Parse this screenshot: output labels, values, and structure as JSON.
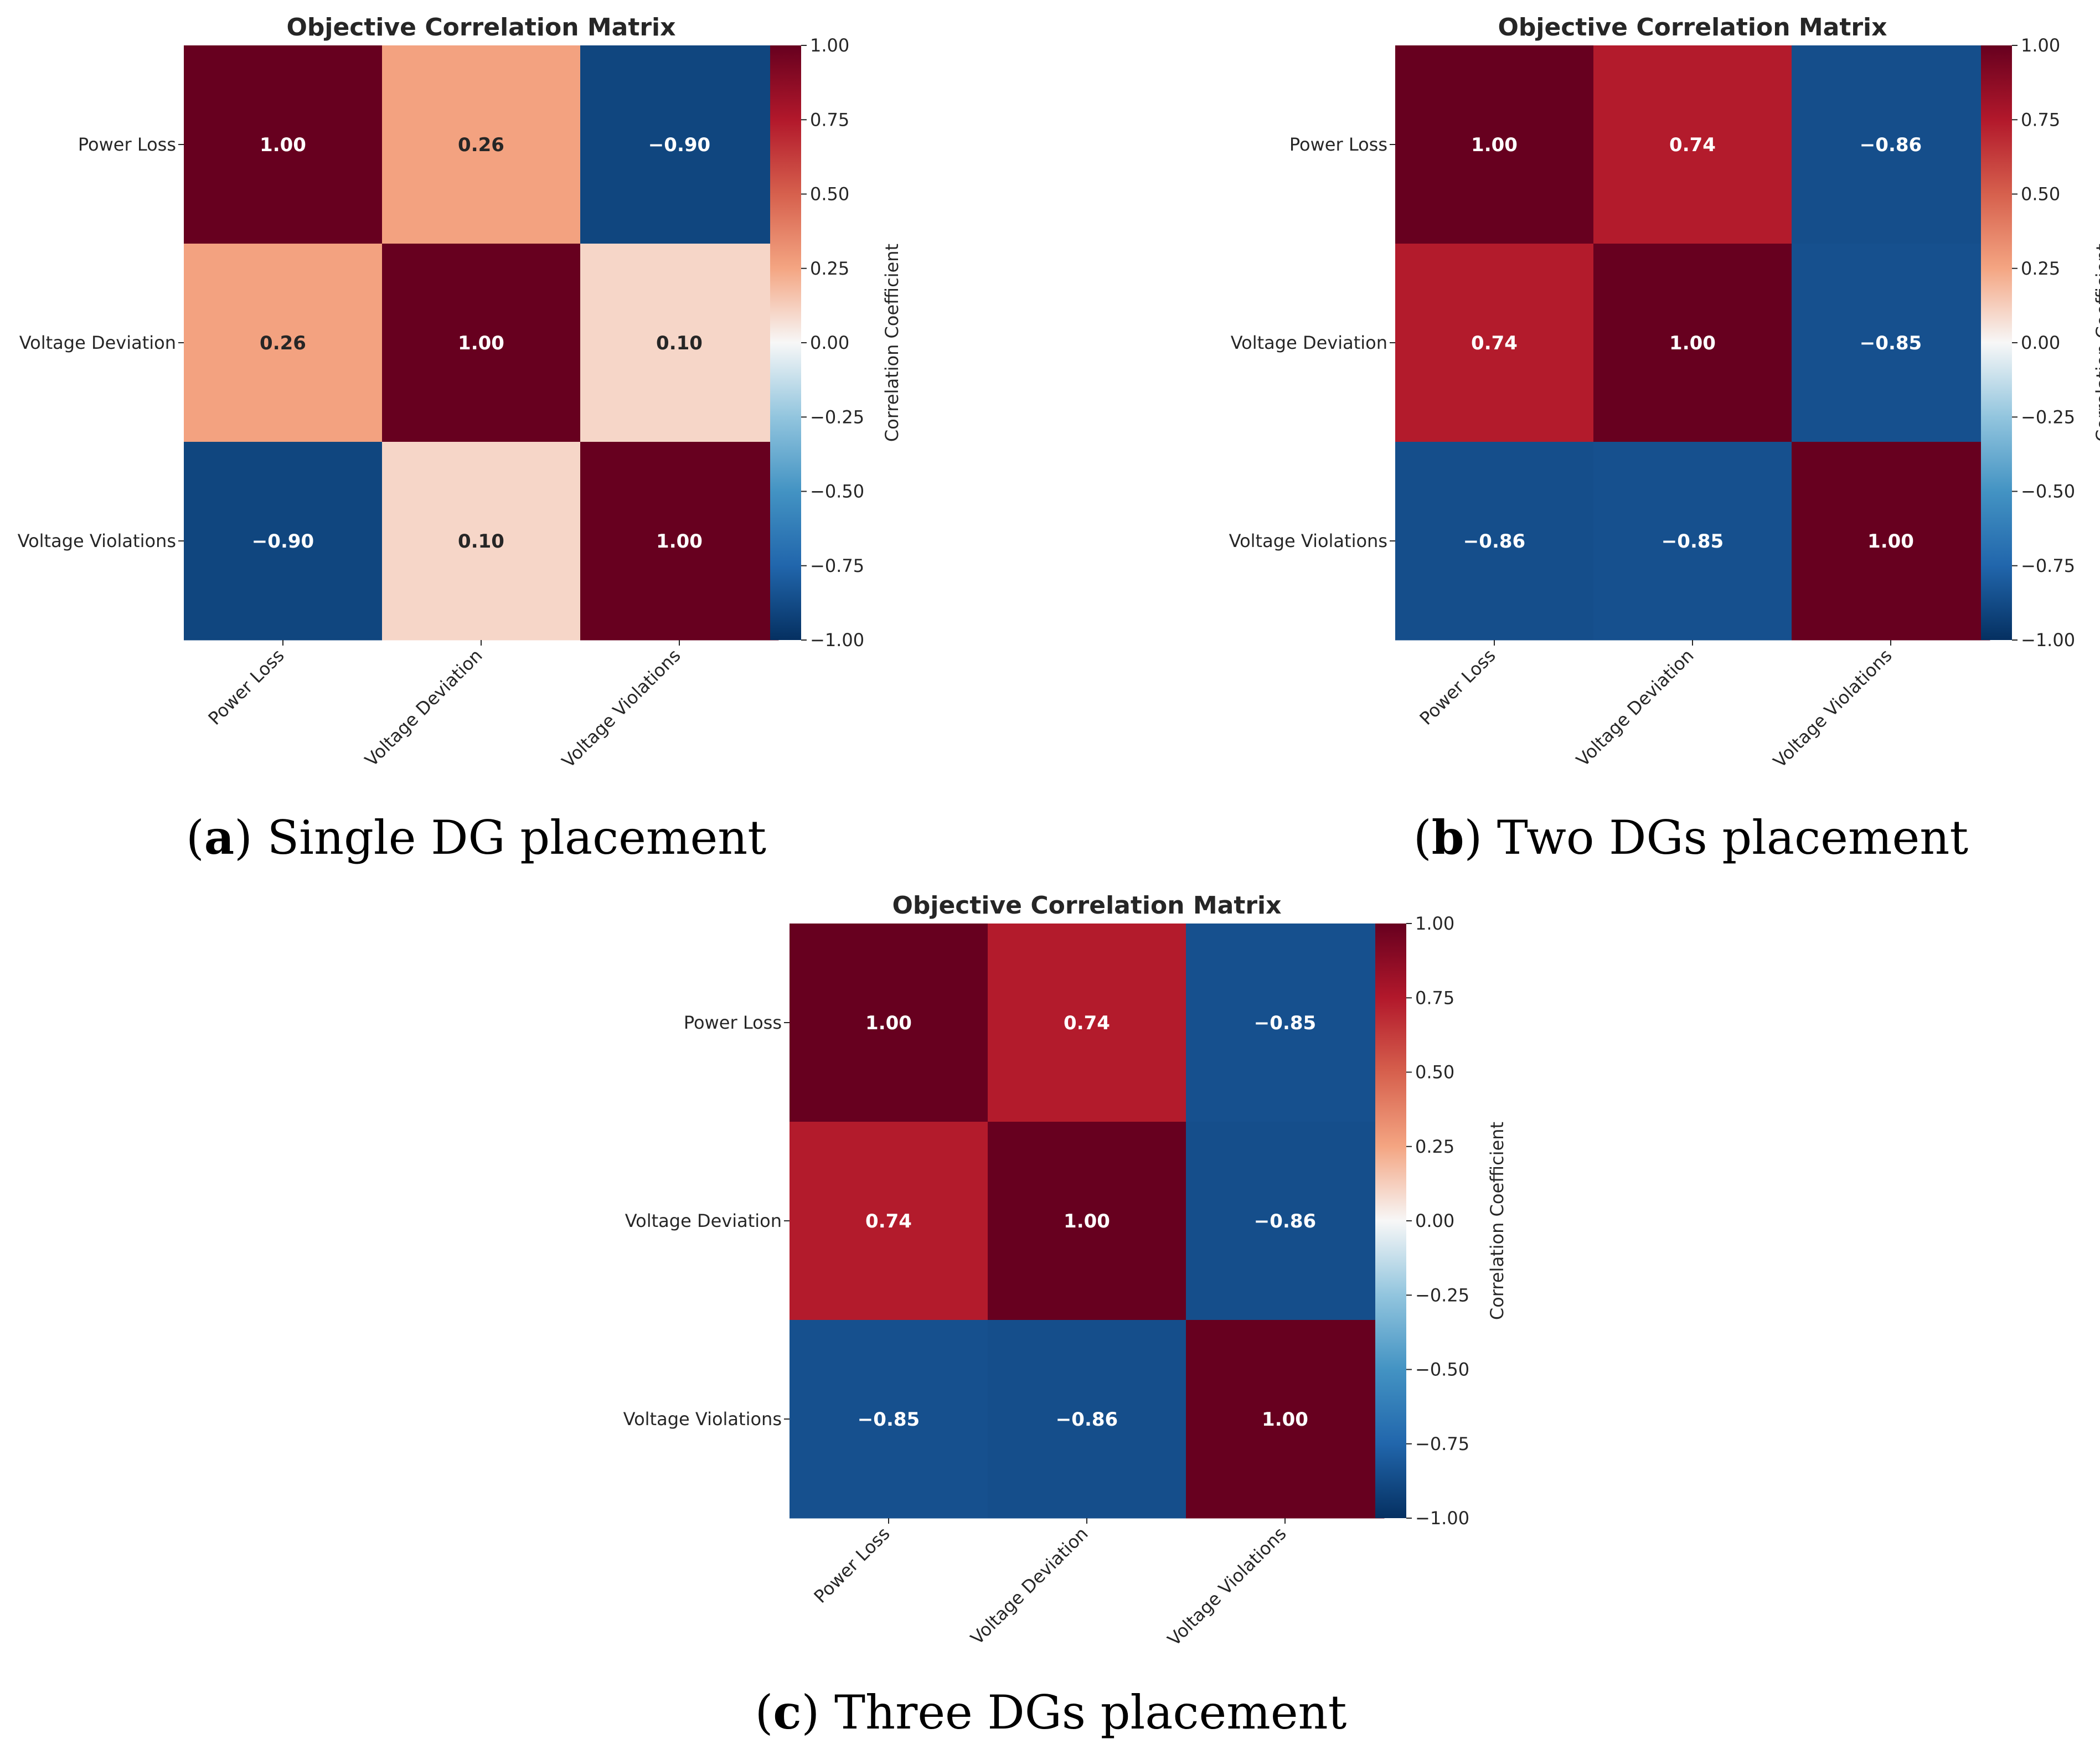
{
  "figure": {
    "panels": [
      {
        "label": "a",
        "caption": "Single DG placement"
      },
      {
        "label": "b",
        "caption": "Two DGs placement"
      },
      {
        "label": "c",
        "caption": "Three DGs placement"
      }
    ]
  },
  "chart_data": [
    {
      "type": "heatmap",
      "title": "Objective Correlation Matrix",
      "row_labels": [
        "Power Loss",
        "Voltage Deviation",
        "Voltage Violations"
      ],
      "col_labels": [
        "Power Loss",
        "Voltage Deviation",
        "Voltage Violations"
      ],
      "values": [
        [
          1.0,
          0.26,
          -0.9
        ],
        [
          0.26,
          1.0,
          0.1
        ],
        [
          -0.9,
          0.1,
          1.0
        ]
      ],
      "value_format": "0.00",
      "colorbar": {
        "label": "Correlation Coefficient",
        "range": [
          -1.0,
          1.0
        ],
        "ticks": [
          "1.00",
          "0.75",
          "0.50",
          "0.25",
          "0.00",
          "−0.25",
          "−0.50",
          "−0.75",
          "−1.00"
        ]
      },
      "colormap": "RdBu_r"
    },
    {
      "type": "heatmap",
      "title": "Objective Correlation Matrix",
      "row_labels": [
        "Power Loss",
        "Voltage Deviation",
        "Voltage Violations"
      ],
      "col_labels": [
        "Power Loss",
        "Voltage Deviation",
        "Voltage Violations"
      ],
      "values": [
        [
          1.0,
          0.74,
          -0.86
        ],
        [
          0.74,
          1.0,
          -0.85
        ],
        [
          -0.86,
          -0.85,
          1.0
        ]
      ],
      "value_format": "0.00",
      "colorbar": {
        "label": "Correlation Coefficient",
        "range": [
          -1.0,
          1.0
        ],
        "ticks": [
          "1.00",
          "0.75",
          "0.50",
          "0.25",
          "0.00",
          "−0.25",
          "−0.50",
          "−0.75",
          "−1.00"
        ]
      },
      "colormap": "RdBu_r"
    },
    {
      "type": "heatmap",
      "title": "Objective Correlation Matrix",
      "row_labels": [
        "Power Loss",
        "Voltage Deviation",
        "Voltage Violations"
      ],
      "col_labels": [
        "Power Loss",
        "Voltage Deviation",
        "Voltage Violations"
      ],
      "values": [
        [
          1.0,
          0.74,
          -0.85
        ],
        [
          0.74,
          1.0,
          -0.86
        ],
        [
          -0.85,
          -0.86,
          1.0
        ]
      ],
      "value_format": "0.00",
      "colorbar": {
        "label": "Correlation Coefficient",
        "range": [
          -1.0,
          1.0
        ],
        "ticks": [
          "1.00",
          "0.75",
          "0.50",
          "0.25",
          "0.00",
          "−0.25",
          "−0.50",
          "−0.75",
          "−1.00"
        ]
      },
      "colormap": "RdBu_r"
    }
  ]
}
